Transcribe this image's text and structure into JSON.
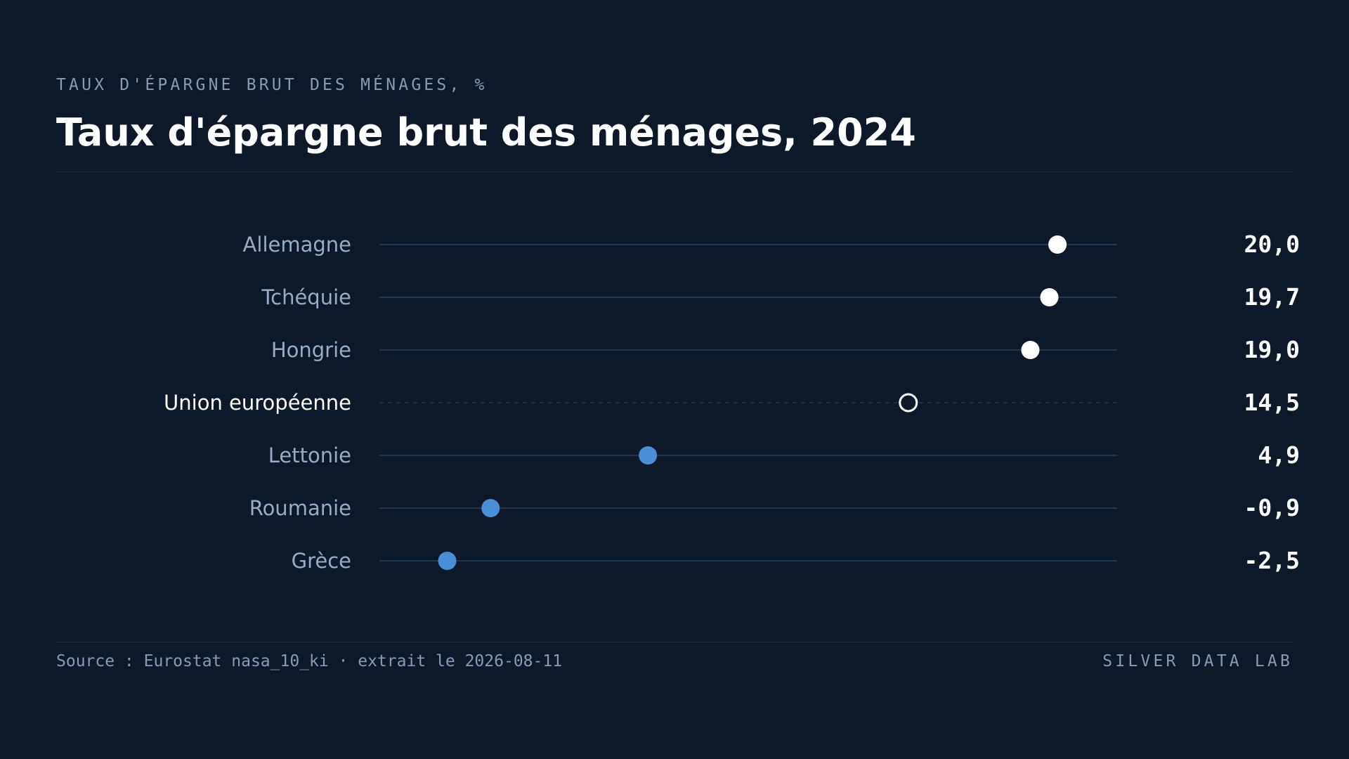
{
  "header": {
    "eyebrow": "TAUX D'ÉPARGNE BRUT DES MÉNAGES, %",
    "title": "Taux d'épargne brut des ménages, 2024"
  },
  "footer": {
    "source": "Source : Eurostat nasa_10_ki · extrait le 2026-08-11",
    "brand": "SILVER DATA LAB"
  },
  "colors": {
    "background": "#0d1929",
    "high_point": "#ffffff",
    "low_point": "#4a8ed8",
    "reference_point_stroke": "#ffffff",
    "track": "#24354f",
    "label": "#9aabc6",
    "label_reference": "#ffffff",
    "value": "#ffffff"
  },
  "chart_data": {
    "type": "dot",
    "title": "Taux d'épargne brut des ménages, 2024",
    "categories": [
      "Allemagne",
      "Tchéquie",
      "Hongrie",
      "Union européenne",
      "Lettonie",
      "Roumanie",
      "Grèce"
    ],
    "value_labels": [
      "20,0",
      "19,7",
      "19,0",
      "14,5",
      "4,9",
      "-0,9",
      "-2,5"
    ],
    "series": [
      {
        "values": [
          20.0,
          19.7,
          19.0,
          14.5,
          4.9,
          -0.9,
          -2.5
        ]
      }
    ],
    "reference_category": "Union européenne",
    "grid": false,
    "legend": "none"
  }
}
